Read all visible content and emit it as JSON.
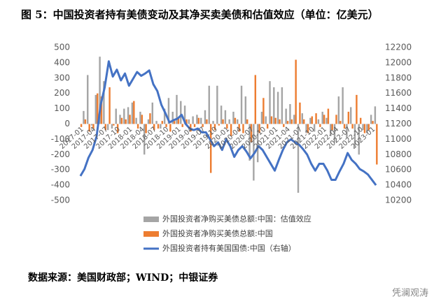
{
  "chart_data": {
    "type": "bar_line",
    "title": "图 5：中国投资者持有美债变动及其净买卖美债和估值效应（单位：亿美元）",
    "source": "数据来源：美国财政部；WIND；中银证券",
    "watermark": "凭澜观涛",
    "categories": [
      "2017-01",
      null,
      null,
      "2017-04",
      null,
      null,
      "2017-07",
      null,
      null,
      "2017-10",
      null,
      null,
      "2018-01",
      null,
      null,
      "2018-04",
      null,
      null,
      "2018-07",
      null,
      null,
      "2018-10",
      null,
      null,
      "2019-01",
      null,
      null,
      "2019-04",
      null,
      null,
      "2019-07",
      null,
      null,
      "2019-10",
      null,
      null,
      "2020-01",
      null,
      null,
      "2020-04",
      null,
      null,
      "2020-07",
      null,
      null,
      "2020-10",
      null,
      null,
      "2021-01",
      null,
      null,
      "2021-04",
      null,
      null,
      "2021-07",
      null,
      null,
      "2021-10",
      null,
      null,
      "2022-01",
      null,
      null,
      "2022-04",
      null,
      null,
      "2022-07",
      null,
      null,
      "2022-10",
      null,
      null,
      "2023-01",
      null
    ],
    "series": [
      {
        "name": "外国投资者净购买美债总额:中国：估值效应",
        "color": "#a5a5a5",
        "kind": "bar",
        "axis": "y",
        "values": [
          0,
          85,
          320,
          -10,
          190,
          440,
          280,
          -40,
          -30,
          100,
          60,
          100,
          110,
          140,
          40,
          80,
          -200,
          30,
          140,
          20,
          -30,
          100,
          170,
          80,
          190,
          150,
          120,
          30,
          50,
          60,
          40,
          90,
          250,
          20,
          250,
          120,
          90,
          30,
          80,
          30,
          250,
          180,
          -240,
          -370,
          -250,
          80,
          50,
          280,
          240,
          210,
          240,
          100,
          130,
          60,
          -450,
          70,
          -60,
          40,
          -50,
          30,
          80,
          40,
          -80,
          -120,
          180,
          240,
          -90,
          110,
          -150,
          -200,
          -40,
          -60,
          60,
          115
        ]
      },
      {
        "name": "外国投资者净购买美债总额:中国",
        "color": "#ed7d31",
        "kind": "bar",
        "axis": "y",
        "values": [
          -20,
          30,
          -50,
          -30,
          200,
          180,
          -40,
          240,
          -10,
          -60,
          40,
          30,
          60,
          150,
          -30,
          60,
          -60,
          70,
          -40,
          -30,
          20,
          -20,
          -50,
          20,
          40,
          -20,
          30,
          -50,
          -20,
          40,
          -20,
          30,
          -320,
          -40,
          -10,
          30,
          -30,
          -80,
          40,
          -50,
          -60,
          30,
          -120,
          320,
          -60,
          170,
          -30,
          50,
          40,
          30,
          -20,
          20,
          30,
          420,
          140,
          30,
          -60,
          50,
          70,
          -20,
          60,
          100,
          -40,
          60,
          20,
          -30,
          80,
          -30,
          190,
          40,
          -60,
          -40,
          20,
          -265
        ]
      },
      {
        "name": "外国投资者持有美国国债:中国（右轴）",
        "color": "#4472c4",
        "kind": "line",
        "axis": "y2",
        "values": [
          10520,
          10610,
          10760,
          10860,
          11040,
          11450,
          11680,
          12020,
          11820,
          11910,
          11770,
          11860,
          11700,
          11790,
          11880,
          11830,
          11860,
          11900,
          11720,
          11630,
          11450,
          11340,
          11220,
          11250,
          11270,
          11320,
          11200,
          11140,
          11120,
          11140,
          11090,
          11090,
          11000,
          10910,
          10960,
          10860,
          11000,
          10910,
          10770,
          10860,
          10910,
          10840,
          10750,
          10820,
          10910,
          10860,
          10770,
          10680,
          10590,
          10730,
          10860,
          10960,
          11000,
          10960,
          10930,
          10870,
          10800,
          10680,
          10590,
          10680,
          10680,
          10590,
          10470,
          10470,
          10580,
          10680,
          10820,
          10730,
          10680,
          10610,
          10580,
          10540,
          10470,
          10400
        ]
      }
    ],
    "ylim": [
      -500,
      500
    ],
    "yticks": [
      -500,
      -400,
      -300,
      -200,
      -100,
      0,
      100,
      200,
      300,
      400,
      500
    ],
    "y2lim": [
      10200,
      12200
    ],
    "y2ticks": [
      10200,
      10400,
      10600,
      10800,
      11000,
      11200,
      11400,
      11600,
      11800,
      12000,
      12200
    ],
    "grid": false,
    "legend": "bottom"
  }
}
